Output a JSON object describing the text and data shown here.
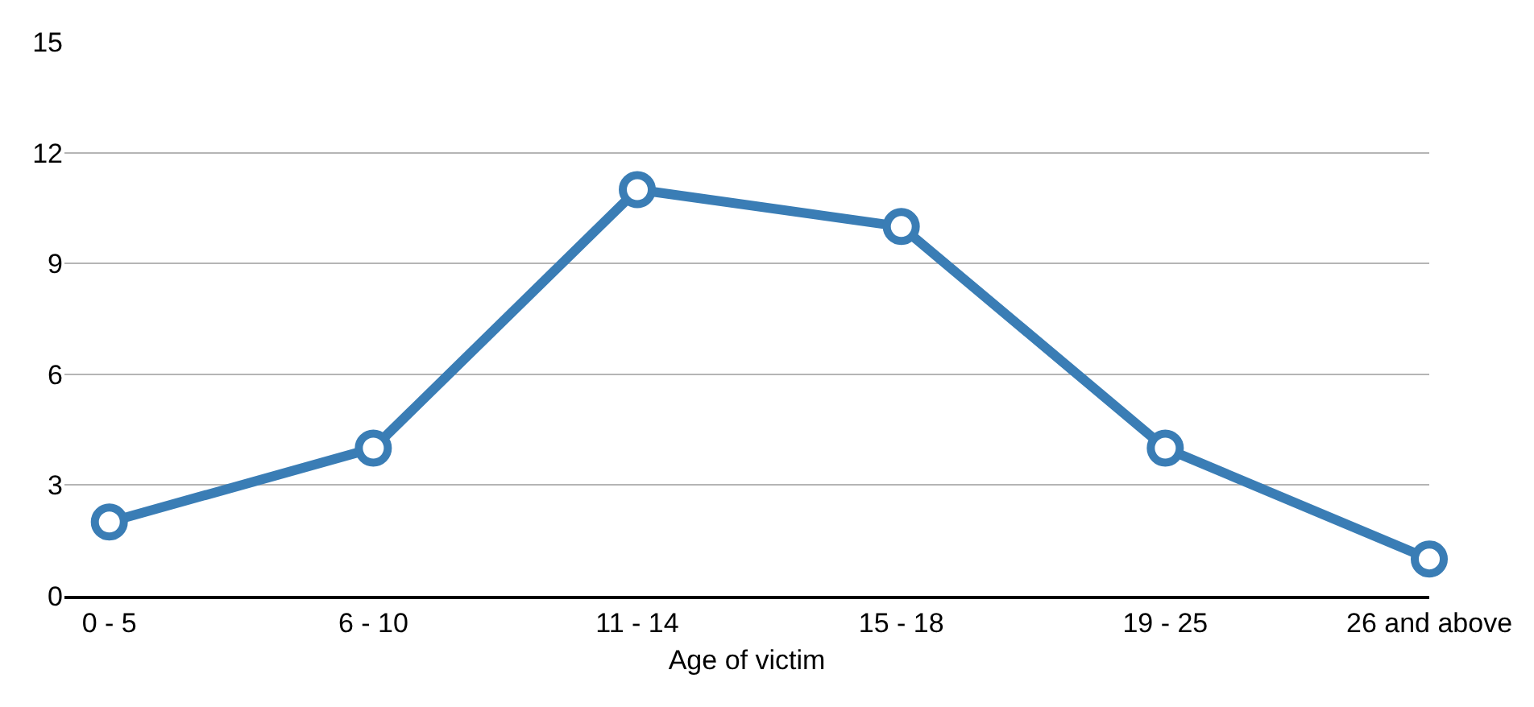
{
  "chart_data": {
    "type": "line",
    "xlabel": "Age of victim",
    "categories": [
      "0 - 5",
      "6 - 10",
      "11 - 14",
      "15 - 18",
      "19 - 25",
      "26 and above"
    ],
    "series": [
      {
        "color": "#3a7db5",
        "values": [
          2,
          4,
          11,
          10,
          4,
          1
        ]
      }
    ],
    "ylim": [
      0,
      15
    ],
    "yticks": [
      0,
      3,
      6,
      9,
      12,
      15
    ],
    "grid": "y",
    "legend": false,
    "marker": "circle",
    "line_style": "solid"
  }
}
